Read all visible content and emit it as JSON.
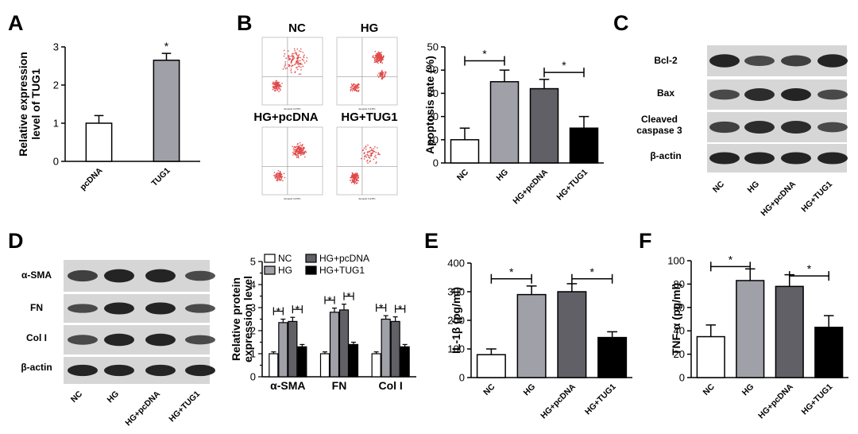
{
  "panels": {
    "A": "A",
    "B": "B",
    "C": "C",
    "D": "D",
    "E": "E",
    "F": "F"
  },
  "significance_mark": "*",
  "flow": {
    "titles": [
      "NC",
      "HG",
      "HG+pcDNA",
      "HG+TUG1"
    ],
    "xaxis": "Annexin V-FITC"
  },
  "blot_C": {
    "rows": [
      "Bcl-2",
      "Bax",
      "Cleaved",
      "caspase 3",
      "β-actin"
    ],
    "lanes": [
      "NC",
      "HG",
      "HG+pcDNA",
      "HG+TUG1"
    ]
  },
  "blot_D": {
    "rows": [
      "α-SMA",
      "FN",
      "Col I",
      "β-actin"
    ],
    "lanes": [
      "NC",
      "HG",
      "HG+pcDNA",
      "HG+TUG1"
    ]
  },
  "chart_data": [
    {
      "panel": "A",
      "type": "bar",
      "categories": [
        "pcDNA",
        "TUG1"
      ],
      "values": [
        1.0,
        2.65
      ],
      "errors": [
        0.2,
        0.18
      ],
      "ylabel_lines": [
        "Relative expression",
        "level of TUG1"
      ],
      "ylim": [
        0,
        3
      ],
      "yticks": [
        0,
        1,
        2,
        3
      ],
      "colors": [
        "#ffffff",
        "#a0a0a8"
      ],
      "significance": [
        {
          "over": 1,
          "label": "*"
        }
      ]
    },
    {
      "panel": "B",
      "type": "bar",
      "categories": [
        "NC",
        "HG",
        "HG+pcDNA",
        "HG+TUG1"
      ],
      "values": [
        10,
        35,
        32,
        15
      ],
      "errors": [
        5,
        5,
        4,
        5
      ],
      "ylabel": "Apoptosis rate (%)",
      "ylim": [
        0,
        50
      ],
      "yticks": [
        0,
        10,
        20,
        30,
        40,
        50
      ],
      "colors": [
        "#ffffff",
        "#a0a0a8",
        "#606066",
        "#000000"
      ],
      "brackets": [
        {
          "from": 0,
          "to": 1,
          "level": 44,
          "label": "*"
        },
        {
          "from": 2,
          "to": 3,
          "level": 39,
          "label": "*"
        }
      ]
    },
    {
      "panel": "D",
      "type": "bar",
      "categories": [
        "α-SMA",
        "FN",
        "Col I"
      ],
      "series": [
        {
          "name": "NC",
          "values": [
            1.0,
            1.0,
            1.0
          ],
          "errors": [
            0.08,
            0.08,
            0.08
          ],
          "color": "#ffffff"
        },
        {
          "name": "HG",
          "values": [
            2.35,
            2.8,
            2.5
          ],
          "errors": [
            0.15,
            0.18,
            0.15
          ],
          "color": "#a0a0a8"
        },
        {
          "name": "HG+pcDNA",
          "values": [
            2.4,
            2.9,
            2.4
          ],
          "errors": [
            0.18,
            0.25,
            0.2
          ],
          "color": "#606066"
        },
        {
          "name": "HG+TUG1",
          "values": [
            1.3,
            1.4,
            1.3
          ],
          "errors": [
            0.1,
            0.1,
            0.1
          ],
          "color": "#000000"
        }
      ],
      "ylabel_lines": [
        "Relative protein",
        "expression level"
      ],
      "ylim": [
        0,
        5
      ],
      "yticks": [
        0,
        0.5,
        1.0,
        1.5,
        2.0,
        2.5,
        3.0,
        3.5,
        4.0,
        4.5,
        5.0
      ],
      "ytick_labels": [
        "0",
        "",
        "1",
        "",
        "2",
        "",
        "3",
        "",
        "4",
        "",
        "5"
      ],
      "brackets": [
        {
          "from": 0,
          "to": 1,
          "label": "*"
        },
        {
          "from": 2,
          "to": 3,
          "label": "*"
        }
      ],
      "legend": [
        "NC",
        "HG",
        "HG+pcDNA",
        "HG+TUG1"
      ]
    },
    {
      "panel": "E",
      "type": "bar",
      "categories": [
        "NC",
        "HG",
        "HG+pcDNA",
        "HG+TUG1"
      ],
      "values": [
        80,
        290,
        300,
        140
      ],
      "errors": [
        20,
        30,
        28,
        20
      ],
      "ylabel": "IL-1β (pg/ml)",
      "ylim": [
        0,
        400
      ],
      "yticks": [
        0,
        100,
        200,
        300,
        400
      ],
      "colors": [
        "#ffffff",
        "#a0a0a8",
        "#606066",
        "#000000"
      ],
      "brackets": [
        {
          "from": 0,
          "to": 1,
          "level": 345,
          "label": "*"
        },
        {
          "from": 2,
          "to": 3,
          "level": 345,
          "label": "*"
        }
      ]
    },
    {
      "panel": "F",
      "type": "bar",
      "categories": [
        "NC",
        "HG",
        "HG+pcDNA",
        "HG+TUG1"
      ],
      "values": [
        35,
        83,
        78,
        43
      ],
      "errors": [
        10,
        10,
        10,
        10
      ],
      "ylabel": "TNF-α (pg/ml)",
      "ylim": [
        0,
        100
      ],
      "yticks": [
        0,
        20,
        40,
        60,
        80,
        100
      ],
      "colors": [
        "#ffffff",
        "#a0a0a8",
        "#606066",
        "#000000"
      ],
      "brackets": [
        {
          "from": 0,
          "to": 1,
          "level": 95,
          "label": "*"
        },
        {
          "from": 2,
          "to": 3,
          "level": 87,
          "label": "*"
        }
      ]
    }
  ]
}
